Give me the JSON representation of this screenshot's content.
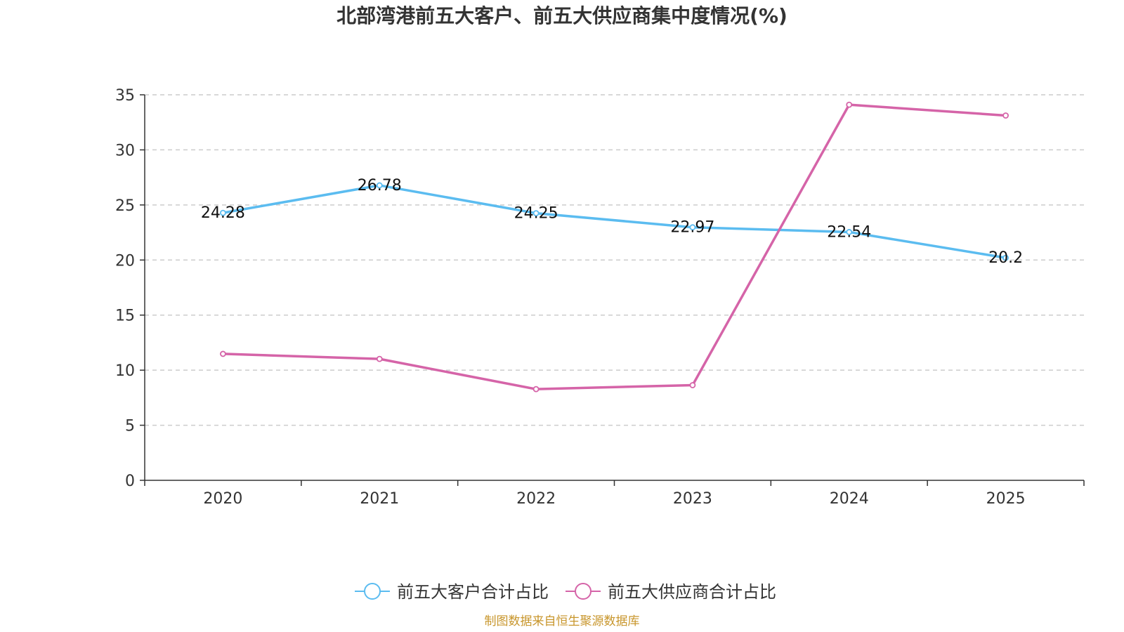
{
  "chart_data": {
    "type": "line",
    "title": "北部湾港前五大客户、前五大供应商集中度情况(%)",
    "categories": [
      "2020",
      "2021",
      "2022",
      "2023",
      "2024",
      "2025"
    ],
    "ylim": [
      0,
      35
    ],
    "yticks": [
      0,
      5,
      10,
      15,
      20,
      25,
      30,
      35
    ],
    "ytick_labels": [
      "0",
      "5",
      "10",
      "15",
      "20",
      "25",
      "30",
      "35"
    ],
    "grid": true,
    "legend_position": "bottom-center",
    "series": [
      {
        "name": "前五大客户合计占比",
        "color": "#5bbcf0",
        "values": [
          24.28,
          26.78,
          24.25,
          22.97,
          22.54,
          20.2
        ],
        "labels": [
          "24.28",
          "26.78",
          "24.25",
          "22.97",
          "22.54",
          "20.2"
        ],
        "show_labels": true
      },
      {
        "name": "前五大供应商合计占比",
        "color": "#d564a8",
        "values": [
          11.48,
          11.02,
          8.28,
          8.64,
          34.1,
          33.12
        ],
        "show_labels": false
      }
    ]
  },
  "source_text": "制图数据来自恒生聚源数据库",
  "source_color": "#c8962c"
}
